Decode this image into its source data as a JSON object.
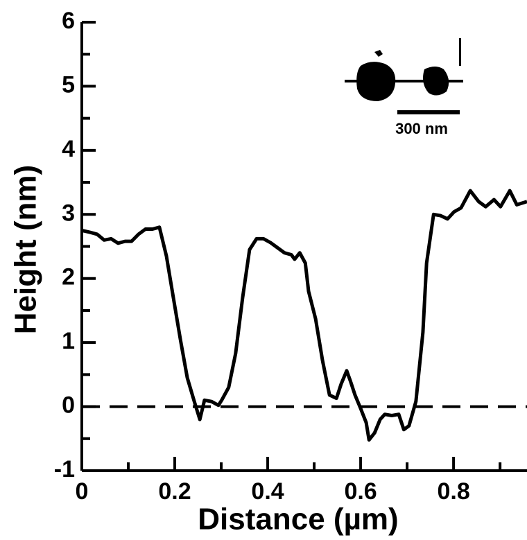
{
  "chart_data": {
    "type": "line",
    "xlabel": "Distance (µm)",
    "ylabel": "Height (nm)",
    "x": [
      0,
      0.018,
      0.033,
      0.048,
      0.063,
      0.078,
      0.093,
      0.107,
      0.122,
      0.137,
      0.152,
      0.167,
      0.182,
      0.197,
      0.212,
      0.227,
      0.242,
      0.254,
      0.264,
      0.279,
      0.294,
      0.301,
      0.316,
      0.331,
      0.346,
      0.361,
      0.376,
      0.391,
      0.406,
      0.421,
      0.436,
      0.451,
      0.458,
      0.469,
      0.481,
      0.488,
      0.503,
      0.518,
      0.533,
      0.548,
      0.558,
      0.57,
      0.578,
      0.588,
      0.6,
      0.612,
      0.618,
      0.63,
      0.642,
      0.652,
      0.667,
      0.682,
      0.693,
      0.704,
      0.719,
      0.734,
      0.742,
      0.757,
      0.772,
      0.787,
      0.801,
      0.816,
      0.836,
      0.854,
      0.869,
      0.887,
      0.901,
      0.921,
      0.936,
      0.958
    ],
    "values": [
      2.75,
      2.72,
      2.69,
      2.6,
      2.62,
      2.55,
      2.58,
      2.58,
      2.69,
      2.77,
      2.77,
      2.8,
      2.35,
      1.7,
      1.05,
      0.45,
      0.08,
      -0.2,
      0.1,
      0.08,
      0.02,
      0.1,
      0.3,
      0.83,
      1.7,
      2.45,
      2.62,
      2.62,
      2.56,
      2.48,
      2.4,
      2.37,
      2.3,
      2.4,
      2.24,
      1.8,
      1.37,
      0.72,
      0.18,
      0.13,
      0.35,
      0.56,
      0.4,
      0.18,
      -0.03,
      -0.25,
      -0.52,
      -0.41,
      -0.2,
      -0.12,
      -0.14,
      -0.12,
      -0.36,
      -0.3,
      0.08,
      1.16,
      2.24,
      3.0,
      2.98,
      2.93,
      3.04,
      3.1,
      3.37,
      3.2,
      3.12,
      3.23,
      3.12,
      3.37,
      3.15,
      3.2
    ],
    "color": "#000000",
    "xlim": [
      0,
      0.958
    ],
    "xticks": [
      0,
      0.2,
      0.4,
      0.6,
      0.8
    ],
    "xminorticks": [
      0.1,
      0.3,
      0.5,
      0.7,
      0.9
    ],
    "ylim": [
      -1,
      6
    ],
    "yticks": [
      -1,
      0,
      1,
      2,
      3,
      4,
      5,
      6
    ],
    "yminorticks": [
      -0.5,
      0.5,
      1.5,
      2.5,
      3.5,
      4.5,
      5.5
    ],
    "hline": 0,
    "inset_scale_label": "300 nm"
  }
}
